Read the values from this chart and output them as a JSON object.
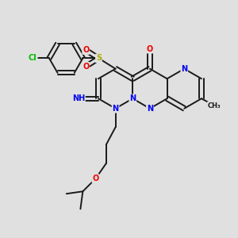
{
  "bg_color": "#e0e0e0",
  "bond_color": "#1a1a1a",
  "bond_width": 1.4,
  "atom_colors": {
    "C": "#1a1a1a",
    "N": "#0000ee",
    "O": "#ee0000",
    "S": "#aaaa00",
    "Cl": "#00bb00",
    "H": "#007777"
  },
  "font_size": 7.0
}
